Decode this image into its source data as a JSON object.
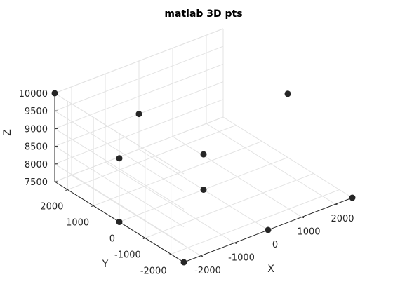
{
  "chart_data": {
    "type": "scatter",
    "title": "matlab 3D pts",
    "xlabel": "X",
    "ylabel": "Y",
    "zlabel": "Z",
    "xlim": [
      -2500,
      2500
    ],
    "ylim": [
      -2500,
      2500
    ],
    "zlim": [
      7500,
      10000
    ],
    "x_ticks": [
      -2000,
      -1000,
      0,
      1000,
      2000
    ],
    "y_ticks": [
      -2000,
      -1000,
      0,
      1000,
      2000
    ],
    "z_ticks": [
      7500,
      8000,
      8500,
      9000,
      9500,
      10000
    ],
    "x_tick_labels": [
      "-2000",
      "-1000",
      "0",
      "1000",
      "2000"
    ],
    "y_tick_labels": [
      "-2000",
      "-1000",
      "0",
      "1000",
      "2000"
    ],
    "z_tick_labels": [
      "7500",
      "8000",
      "8500",
      "9000",
      "9500",
      "10000"
    ],
    "grid": true,
    "box": false,
    "view": "3D",
    "marker_color": "#262626",
    "points": [
      {
        "x": -2500,
        "y": 2500,
        "z": 10000
      },
      {
        "x": -2500,
        "y": 0,
        "z": 7500
      },
      {
        "x": -2500,
        "y": -2500,
        "z": 7500
      },
      {
        "x": 0,
        "y": -2500,
        "z": 7500
      },
      {
        "x": 2500,
        "y": -2500,
        "z": 7500
      },
      {
        "x": 0,
        "y": 0,
        "z": 7500
      },
      {
        "x": 0,
        "y": 0,
        "z": 8500
      },
      {
        "x": -2500,
        "y": 0,
        "z": 9300
      },
      {
        "x": 0,
        "y": 2500,
        "z": 8500
      },
      {
        "x": 2500,
        "y": 0,
        "z": 9300
      }
    ]
  }
}
